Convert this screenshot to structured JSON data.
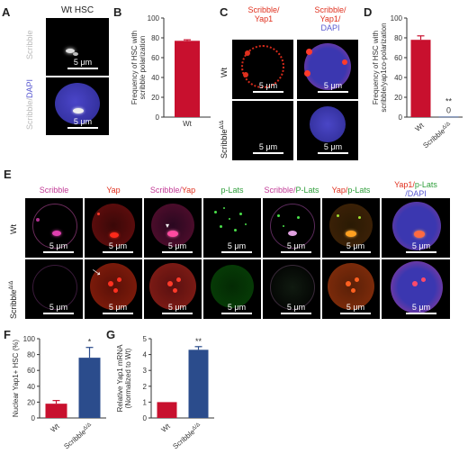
{
  "panels": {
    "A": {
      "letter": "A",
      "title": "Wt HSC",
      "row_labels": [
        "Scribble",
        "Scribble/DAPI"
      ],
      "row_label_scribble": "Scribble",
      "row_label_dapi_a": "Scribble/",
      "row_label_dapi_b": "DAPI",
      "scale": "5 μm"
    },
    "B": {
      "letter": "B"
    },
    "C": {
      "letter": "C",
      "col1": "Scribble/",
      "col1b": "Yap1",
      "col2a": "Scribble/",
      "col2b": "Yap1/",
      "col2c": "DAPI",
      "row_wt": "Wt",
      "row_ko": "Scribble",
      "row_ko_sup": "Δ/Δ",
      "scale": "5 μm"
    },
    "D": {
      "letter": "D"
    },
    "E": {
      "letter": "E",
      "columns": [
        "Scribble",
        "Yap",
        "Scribble/Yap",
        "p-Lats",
        "Scribble/P-Lats",
        "Yap/p-Lats",
        "Yap1/p-Lats/DAPI"
      ],
      "col_scribble": "Scribble",
      "col_yap": "Yap",
      "col_scrib_yap_a": "Scribble/",
      "col_scrib_yap_b": "Yap",
      "col_plats": "p-Lats",
      "col_scrib_plats_a": "Scribble/",
      "col_scrib_plats_b": "P-Lats",
      "col_yap_plats_a": "Yap/",
      "col_yap_plats_b": "p-Lats",
      "col_all_a": "Yap1/",
      "col_all_b": "p-Lats",
      "col_all_c": "/DAPI",
      "row_wt": "Wt",
      "row_ko": "Scribble",
      "row_ko_sup": "Δ/Δ",
      "scale": "5 μm"
    },
    "F": {
      "letter": "F"
    },
    "G": {
      "letter": "G"
    }
  },
  "chart_data": [
    {
      "panel": "B",
      "type": "bar",
      "categories": [
        "Wt"
      ],
      "values": [
        77
      ],
      "errors": [
        1
      ],
      "ylabel": "Frequency of HSC with scribble polarization",
      "ylabel_line1": "Frequency of HSC with",
      "ylabel_line2": "scribble polarization",
      "ylim": [
        0,
        100
      ],
      "yticks": [
        0,
        20,
        40,
        60,
        80,
        100
      ],
      "bar_color": "#c8102e"
    },
    {
      "panel": "D",
      "type": "bar",
      "categories": [
        "Wt",
        "Scribble Δ/Δ"
      ],
      "category_main": [
        "Wt",
        "Scribble"
      ],
      "category_sup": [
        "",
        "Δ/Δ"
      ],
      "values": [
        78,
        0.5
      ],
      "errors": [
        4,
        0
      ],
      "annotations": [
        "",
        "**"
      ],
      "value_labels": [
        "",
        "0"
      ],
      "ylabel": "Frequency of HSC with scribble/yap1co-polarization",
      "ylabel_line1": "Frequency of HSC with",
      "ylabel_line2": "scribble/yap1co-polarization",
      "ylim": [
        0,
        100
      ],
      "yticks": [
        0,
        20,
        40,
        60,
        80,
        100
      ],
      "colors": [
        "#c8102e",
        "#2b4c8c"
      ]
    },
    {
      "panel": "F",
      "type": "bar",
      "categories": [
        "Wt",
        "Scribble Δ/Δ"
      ],
      "category_main": [
        "Wt",
        "Scribble"
      ],
      "category_sup": [
        "",
        "Δ/Δ"
      ],
      "values": [
        18,
        76
      ],
      "errors": [
        4,
        13
      ],
      "annotations": [
        "",
        "*"
      ],
      "ylabel": "Nuclear Yap1+ HSC (%)",
      "ylim": [
        0,
        100
      ],
      "yticks": [
        0,
        20,
        40,
        60,
        80,
        100
      ],
      "colors": [
        "#c8102e",
        "#2b4c8c"
      ]
    },
    {
      "panel": "G",
      "type": "bar",
      "categories": [
        "Wt",
        "Scribble Δ/Δ"
      ],
      "category_main": [
        "Wt",
        "Scribble"
      ],
      "category_sup": [
        "",
        "Δ/Δ"
      ],
      "values": [
        1,
        4.3
      ],
      "errors": [
        0,
        0.2
      ],
      "annotations": [
        "",
        "**"
      ],
      "ylabel": "Relative Yap1 mRNA (Normalized to Wt)",
      "ylabel_line1": "Relative Yap1 mRNA",
      "ylabel_line2": "(Normalized to Wt)",
      "ylim": [
        0,
        5
      ],
      "yticks": [
        0,
        1,
        2,
        3,
        4,
        5
      ],
      "colors": [
        "#c8102e",
        "#2b4c8c"
      ]
    }
  ]
}
